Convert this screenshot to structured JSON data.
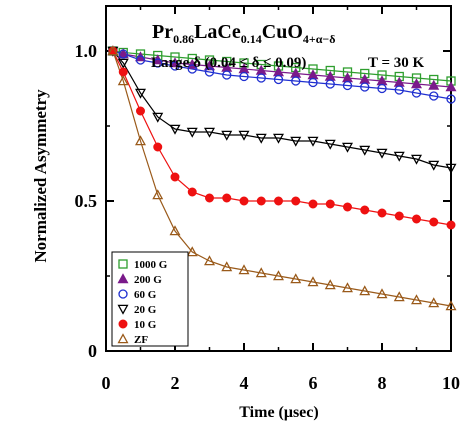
{
  "chart_data": {
    "type": "scatter",
    "title_parts": {
      "formula_base": "Pr",
      "sub1": "0.86",
      "mid1": "LaCe",
      "sub2": "0.14",
      "mid2": "CuO",
      "sub3": "4+α−δ"
    },
    "subtitle": "Large δ (0.04 ≤ δ ≤ 0.09)",
    "temperature_label": "T = 30 K",
    "xlabel": "Time (μsec)",
    "ylabel": "Normalized Asymmetry",
    "xlim": [
      0,
      10
    ],
    "ylim": [
      0,
      1.15
    ],
    "x_ticks": [
      0,
      2,
      4,
      6,
      8,
      10
    ],
    "y_ticks": [
      0,
      0.5,
      1.0
    ],
    "y_tick_labels": [
      "0",
      "0.5",
      "1.0"
    ],
    "legend_position": "bottom-left",
    "series": [
      {
        "name": "1000 G",
        "marker": "square-open",
        "color": "#2e9e2e",
        "x": [
          0.2,
          0.5,
          1.0,
          1.5,
          2.0,
          2.5,
          3.0,
          3.5,
          4.0,
          4.5,
          5.0,
          5.5,
          6.0,
          6.5,
          7.0,
          7.5,
          8.0,
          8.5,
          9.0,
          9.5,
          10.0
        ],
        "y": [
          1.0,
          0.995,
          0.99,
          0.985,
          0.98,
          0.975,
          0.97,
          0.965,
          0.96,
          0.955,
          0.95,
          0.945,
          0.94,
          0.935,
          0.93,
          0.925,
          0.92,
          0.915,
          0.91,
          0.905,
          0.9
        ]
      },
      {
        "name": "200 G",
        "marker": "triangle-filled",
        "color": "#7a1a8a",
        "x": [
          0.2,
          0.5,
          1.0,
          1.5,
          2.0,
          2.5,
          3.0,
          3.5,
          4.0,
          4.5,
          5.0,
          5.5,
          6.0,
          6.5,
          7.0,
          7.5,
          8.0,
          8.5,
          9.0,
          9.5,
          10.0
        ],
        "y": [
          1.0,
          0.99,
          0.98,
          0.97,
          0.96,
          0.955,
          0.95,
          0.945,
          0.94,
          0.935,
          0.93,
          0.925,
          0.92,
          0.915,
          0.91,
          0.905,
          0.9,
          0.895,
          0.89,
          0.885,
          0.88
        ]
      },
      {
        "name": "60 G",
        "marker": "circle-open",
        "color": "#1f2fd0",
        "x": [
          0.2,
          0.5,
          1.0,
          1.5,
          2.0,
          2.5,
          3.0,
          3.5,
          4.0,
          4.5,
          5.0,
          5.5,
          6.0,
          6.5,
          7.0,
          7.5,
          8.0,
          8.5,
          9.0,
          9.5,
          10.0
        ],
        "y": [
          1.0,
          0.99,
          0.97,
          0.96,
          0.95,
          0.94,
          0.93,
          0.92,
          0.915,
          0.91,
          0.905,
          0.9,
          0.895,
          0.89,
          0.885,
          0.88,
          0.875,
          0.87,
          0.86,
          0.85,
          0.84
        ]
      },
      {
        "name": "20 G",
        "marker": "triangle-down-open",
        "color": "#000000",
        "x": [
          0.2,
          0.5,
          1.0,
          1.5,
          2.0,
          2.5,
          3.0,
          3.5,
          4.0,
          4.5,
          5.0,
          5.5,
          6.0,
          6.5,
          7.0,
          7.5,
          8.0,
          8.5,
          9.0,
          9.5,
          10.0
        ],
        "y": [
          1.0,
          0.96,
          0.86,
          0.78,
          0.74,
          0.73,
          0.73,
          0.72,
          0.72,
          0.71,
          0.71,
          0.7,
          0.7,
          0.69,
          0.68,
          0.67,
          0.66,
          0.65,
          0.64,
          0.62,
          0.61
        ]
      },
      {
        "name": "10 G",
        "marker": "circle-filled",
        "color": "#ee1111",
        "x": [
          0.2,
          0.5,
          1.0,
          1.5,
          2.0,
          2.5,
          3.0,
          3.5,
          4.0,
          4.5,
          5.0,
          5.5,
          6.0,
          6.5,
          7.0,
          7.5,
          8.0,
          8.5,
          9.0,
          9.5,
          10.0
        ],
        "y": [
          1.0,
          0.93,
          0.8,
          0.68,
          0.58,
          0.53,
          0.51,
          0.51,
          0.5,
          0.5,
          0.5,
          0.5,
          0.49,
          0.49,
          0.48,
          0.47,
          0.46,
          0.45,
          0.44,
          0.43,
          0.42
        ]
      },
      {
        "name": "ZF",
        "marker": "triangle-open",
        "color": "#9a5a1a",
        "x": [
          0.2,
          0.5,
          1.0,
          1.5,
          2.0,
          2.5,
          3.0,
          3.5,
          4.0,
          4.5,
          5.0,
          5.5,
          6.0,
          6.5,
          7.0,
          7.5,
          8.0,
          8.5,
          9.0,
          9.5,
          10.0
        ],
        "y": [
          1.0,
          0.9,
          0.7,
          0.52,
          0.4,
          0.33,
          0.3,
          0.28,
          0.27,
          0.26,
          0.25,
          0.24,
          0.23,
          0.22,
          0.21,
          0.2,
          0.19,
          0.18,
          0.17,
          0.16,
          0.15
        ]
      }
    ]
  }
}
